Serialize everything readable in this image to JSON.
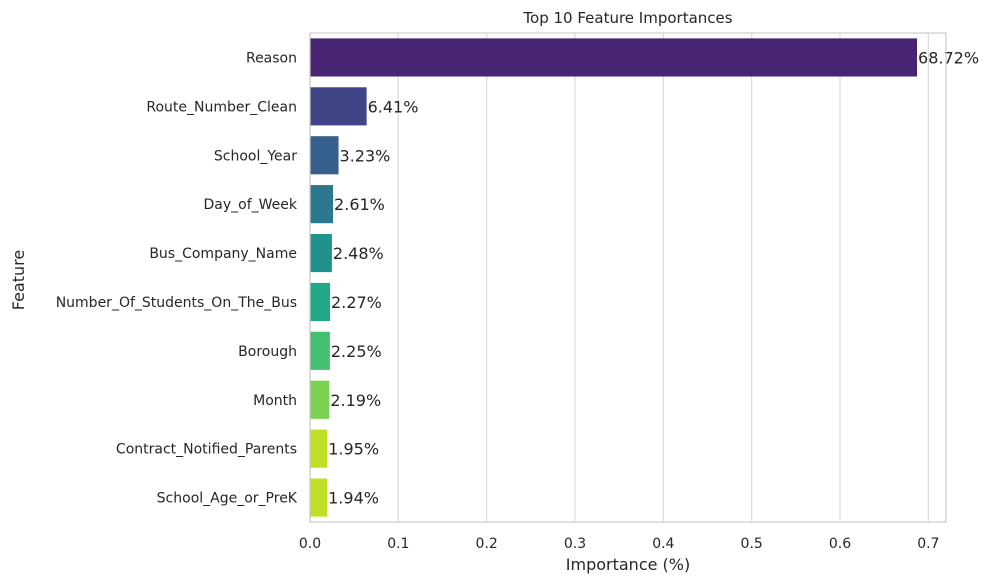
{
  "chart_data": {
    "type": "bar",
    "orientation": "horizontal",
    "title": "Top 10 Feature Importances",
    "xlabel": "Importance (%)",
    "ylabel": "Feature",
    "xlim": [
      0,
      0.72
    ],
    "xticks": [
      0.0,
      0.1,
      0.2,
      0.3,
      0.4,
      0.5,
      0.6,
      0.7
    ],
    "xtick_labels": [
      "0.0",
      "0.1",
      "0.2",
      "0.3",
      "0.4",
      "0.5",
      "0.6",
      "0.7"
    ],
    "grid": "vertical",
    "categories": [
      "Reason",
      "Route_Number_Clean",
      "School_Year",
      "Day_of_Week",
      "Bus_Company_Name",
      "Number_Of_Students_On_The_Bus",
      "Borough",
      "Month",
      "Contract_Notified_Parents",
      "School_Age_or_PreK"
    ],
    "values": [
      0.6872,
      0.0641,
      0.0323,
      0.0261,
      0.0248,
      0.0227,
      0.0225,
      0.0219,
      0.0195,
      0.0194
    ],
    "data_labels": [
      "68.72%",
      "6.41%",
      "3.23%",
      "2.61%",
      "2.48%",
      "2.27%",
      "2.25%",
      "2.19%",
      "1.95%",
      "1.94%"
    ],
    "colors": [
      "#482475",
      "#414487",
      "#355f8d",
      "#2a788e",
      "#21918c",
      "#22a884",
      "#44bf70",
      "#7ad151",
      "#bddf26",
      "#bddf26"
    ]
  }
}
